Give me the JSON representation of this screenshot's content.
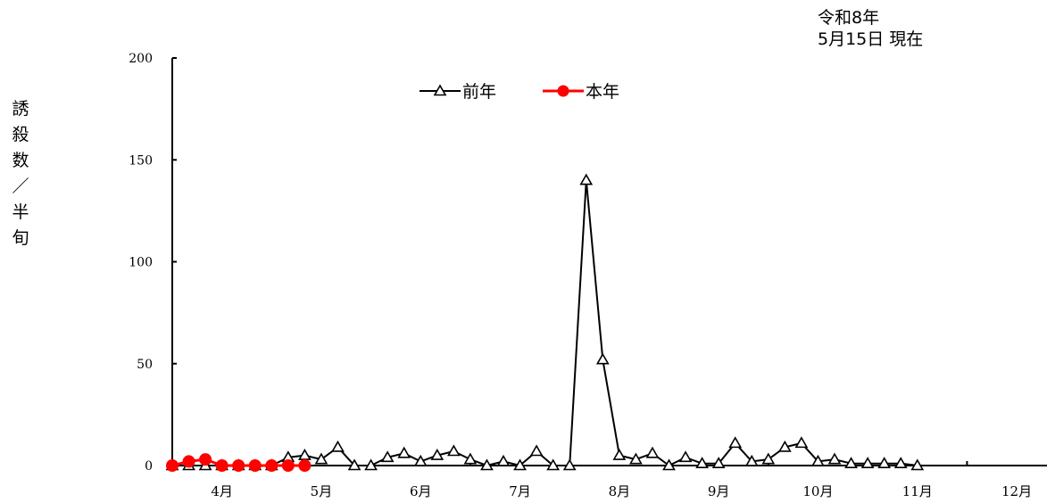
{
  "header": {
    "line1": "令和8年",
    "line2": "5月15日 現在"
  },
  "chart_data": {
    "type": "line",
    "ylabel": "誘殺数／半旬",
    "ylim": [
      0,
      200
    ],
    "yticks": [
      0,
      50,
      100,
      150,
      200
    ],
    "months": [
      "4月",
      "5月",
      "6月",
      "7月",
      "8月",
      "9月",
      "10月",
      "11月",
      "12月"
    ],
    "x_count": 54,
    "legend_placement": "top-center",
    "series": [
      {
        "name": "前年",
        "color": "#000000",
        "marker": "triangle-open",
        "values": [
          0,
          0,
          0,
          0,
          0,
          0,
          0,
          4,
          5,
          3,
          9,
          0,
          0,
          4,
          6,
          2,
          5,
          7,
          3,
          0,
          2,
          0,
          7,
          0,
          0,
          140,
          52,
          5,
          3,
          6,
          0,
          4,
          1,
          1,
          11,
          2,
          3,
          9,
          11,
          2,
          3,
          1,
          1,
          1,
          1,
          0
        ]
      },
      {
        "name": "本年",
        "color": "#ff0000",
        "marker": "circle-filled",
        "values": [
          0,
          2,
          3,
          0,
          0,
          0,
          0,
          0,
          0
        ]
      }
    ]
  }
}
